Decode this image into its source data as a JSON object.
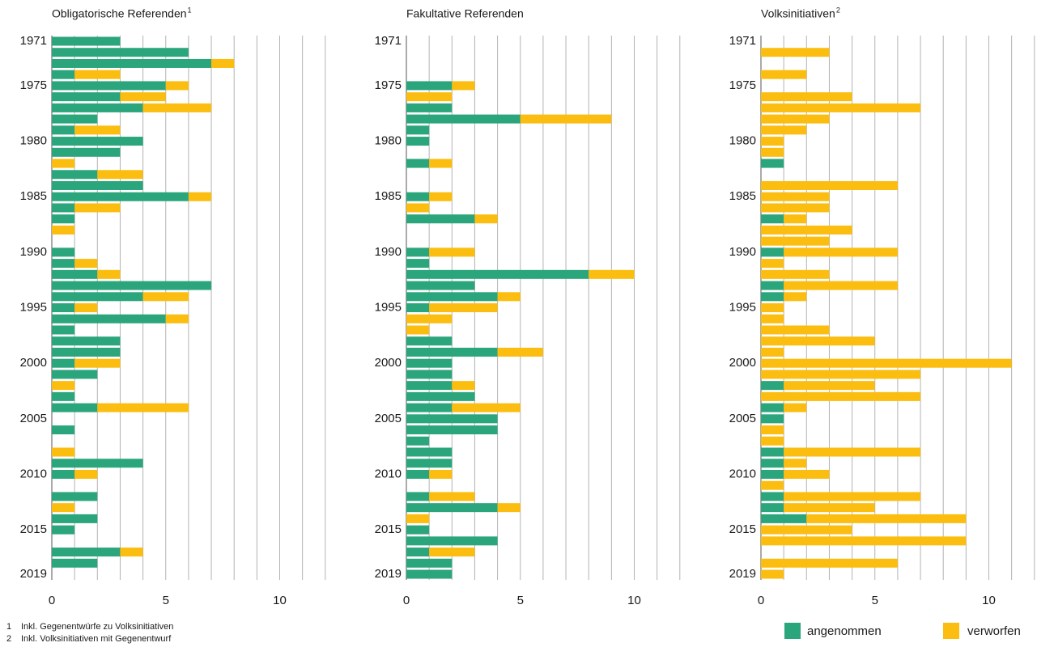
{
  "chart_data": [
    {
      "type": "bar",
      "orientation": "horizontal",
      "stacked": true,
      "title": "Obligatorische Referenden",
      "title_note": "1",
      "categories": [
        "1971",
        null,
        null,
        null,
        "1975",
        null,
        null,
        null,
        null,
        "1980",
        null,
        null,
        null,
        null,
        "1985",
        null,
        null,
        null,
        null,
        "1990",
        null,
        null,
        null,
        null,
        "1995",
        null,
        null,
        null,
        null,
        "2000",
        null,
        null,
        null,
        null,
        "2005",
        null,
        null,
        null,
        null,
        "2010",
        null,
        null,
        null,
        null,
        "2015",
        null,
        null,
        null,
        "2019"
      ],
      "series": [
        {
          "name": "angenommen",
          "color": "#2ba57b",
          "values": [
            3,
            6,
            7,
            1,
            5,
            3,
            4,
            2,
            1,
            4,
            3,
            0,
            2,
            4,
            6,
            1,
            1,
            0,
            0,
            1,
            1,
            2,
            7,
            4,
            1,
            5,
            1,
            3,
            3,
            1,
            2,
            0,
            1,
            2,
            0,
            1,
            0,
            0,
            4,
            1,
            0,
            2,
            0,
            2,
            1,
            0,
            3,
            2,
            0
          ]
        },
        {
          "name": "verworfen",
          "color": "#fbbd0f",
          "values": [
            0,
            0,
            1,
            2,
            1,
            2,
            3,
            0,
            2,
            0,
            0,
            1,
            2,
            0,
            1,
            2,
            0,
            1,
            0,
            0,
            1,
            1,
            0,
            2,
            1,
            1,
            0,
            0,
            0,
            2,
            0,
            1,
            0,
            4,
            0,
            0,
            0,
            1,
            0,
            1,
            0,
            0,
            1,
            0,
            0,
            0,
            1,
            0,
            0
          ]
        }
      ],
      "xlim": [
        0,
        12
      ],
      "xticks": [
        0,
        5,
        10
      ],
      "minor_xticks": [
        1,
        2,
        3,
        4,
        5,
        6,
        7,
        8,
        9,
        10,
        11,
        12
      ],
      "grid": true
    },
    {
      "type": "bar",
      "orientation": "horizontal",
      "stacked": true,
      "title": "Fakultative Referenden",
      "categories": [
        "1971",
        null,
        null,
        null,
        "1975",
        null,
        null,
        null,
        null,
        "1980",
        null,
        null,
        null,
        null,
        "1985",
        null,
        null,
        null,
        null,
        "1990",
        null,
        null,
        null,
        null,
        "1995",
        null,
        null,
        null,
        null,
        "2000",
        null,
        null,
        null,
        null,
        "2005",
        null,
        null,
        null,
        null,
        "2010",
        null,
        null,
        null,
        null,
        "2015",
        null,
        null,
        null,
        "2019"
      ],
      "series": [
        {
          "name": "angenommen",
          "color": "#2ba57b",
          "values": [
            0,
            0,
            0,
            0,
            2,
            0,
            2,
            5,
            1,
            1,
            0,
            1,
            0,
            0,
            1,
            0,
            3,
            0,
            0,
            1,
            1,
            8,
            3,
            4,
            1,
            0,
            0,
            2,
            4,
            2,
            2,
            2,
            3,
            2,
            4,
            4,
            1,
            2,
            2,
            1,
            0,
            1,
            4,
            0,
            1,
            4,
            1,
            2,
            2
          ]
        },
        {
          "name": "verworfen",
          "color": "#fbbd0f",
          "values": [
            0,
            0,
            0,
            0,
            1,
            2,
            0,
            4,
            0,
            0,
            0,
            1,
            0,
            0,
            1,
            1,
            1,
            0,
            0,
            2,
            0,
            2,
            0,
            1,
            3,
            2,
            1,
            0,
            2,
            0,
            0,
            1,
            0,
            3,
            0,
            0,
            0,
            0,
            0,
            1,
            0,
            2,
            1,
            1,
            0,
            0,
            2,
            0,
            0
          ]
        }
      ],
      "xlim": [
        0,
        12
      ],
      "xticks": [
        0,
        5,
        10
      ],
      "minor_xticks": [
        1,
        2,
        3,
        4,
        5,
        6,
        7,
        8,
        9,
        10,
        11,
        12
      ],
      "grid": true
    },
    {
      "type": "bar",
      "orientation": "horizontal",
      "stacked": true,
      "title": "Volksinitiativen",
      "title_note": "2",
      "categories": [
        "1971",
        null,
        null,
        null,
        "1975",
        null,
        null,
        null,
        null,
        "1980",
        null,
        null,
        null,
        null,
        "1985",
        null,
        null,
        null,
        null,
        "1990",
        null,
        null,
        null,
        null,
        "1995",
        null,
        null,
        null,
        null,
        "2000",
        null,
        null,
        null,
        null,
        "2005",
        null,
        null,
        null,
        null,
        "2010",
        null,
        null,
        null,
        null,
        "2015",
        null,
        null,
        null,
        "2019"
      ],
      "series": [
        {
          "name": "angenommen",
          "color": "#2ba57b",
          "values": [
            0,
            0,
            0,
            0,
            0,
            0,
            0,
            0,
            0,
            0,
            0,
            1,
            0,
            0,
            0,
            0,
            1,
            0,
            0,
            1,
            0,
            0,
            1,
            1,
            0,
            0,
            0,
            0,
            0,
            0,
            0,
            1,
            0,
            1,
            1,
            0,
            0,
            1,
            1,
            1,
            0,
            1,
            1,
            2,
            0,
            0,
            0,
            0,
            0
          ]
        },
        {
          "name": "verworfen",
          "color": "#fbbd0f",
          "values": [
            0,
            3,
            0,
            2,
            0,
            4,
            7,
            3,
            2,
            1,
            1,
            0,
            0,
            6,
            3,
            3,
            1,
            4,
            3,
            5,
            1,
            3,
            5,
            1,
            1,
            1,
            3,
            5,
            1,
            11,
            7,
            4,
            7,
            1,
            0,
            1,
            1,
            6,
            1,
            2,
            1,
            6,
            4,
            7,
            4,
            9,
            0,
            6,
            1
          ]
        }
      ],
      "xlim": [
        0,
        12
      ],
      "xticks": [
        0,
        5,
        10
      ],
      "minor_xticks": [
        1,
        2,
        3,
        4,
        5,
        6,
        7,
        8,
        9,
        10,
        11,
        12
      ],
      "grid": true,
      "legend": "bottom-right"
    }
  ],
  "footnotes": [
    {
      "mark": "1",
      "text": "Inkl. Gegenentwürfe zu Volksinitiativen"
    },
    {
      "mark": "2",
      "text": "Inkl. Volksinitiativen mit Gegenentwurf"
    }
  ]
}
